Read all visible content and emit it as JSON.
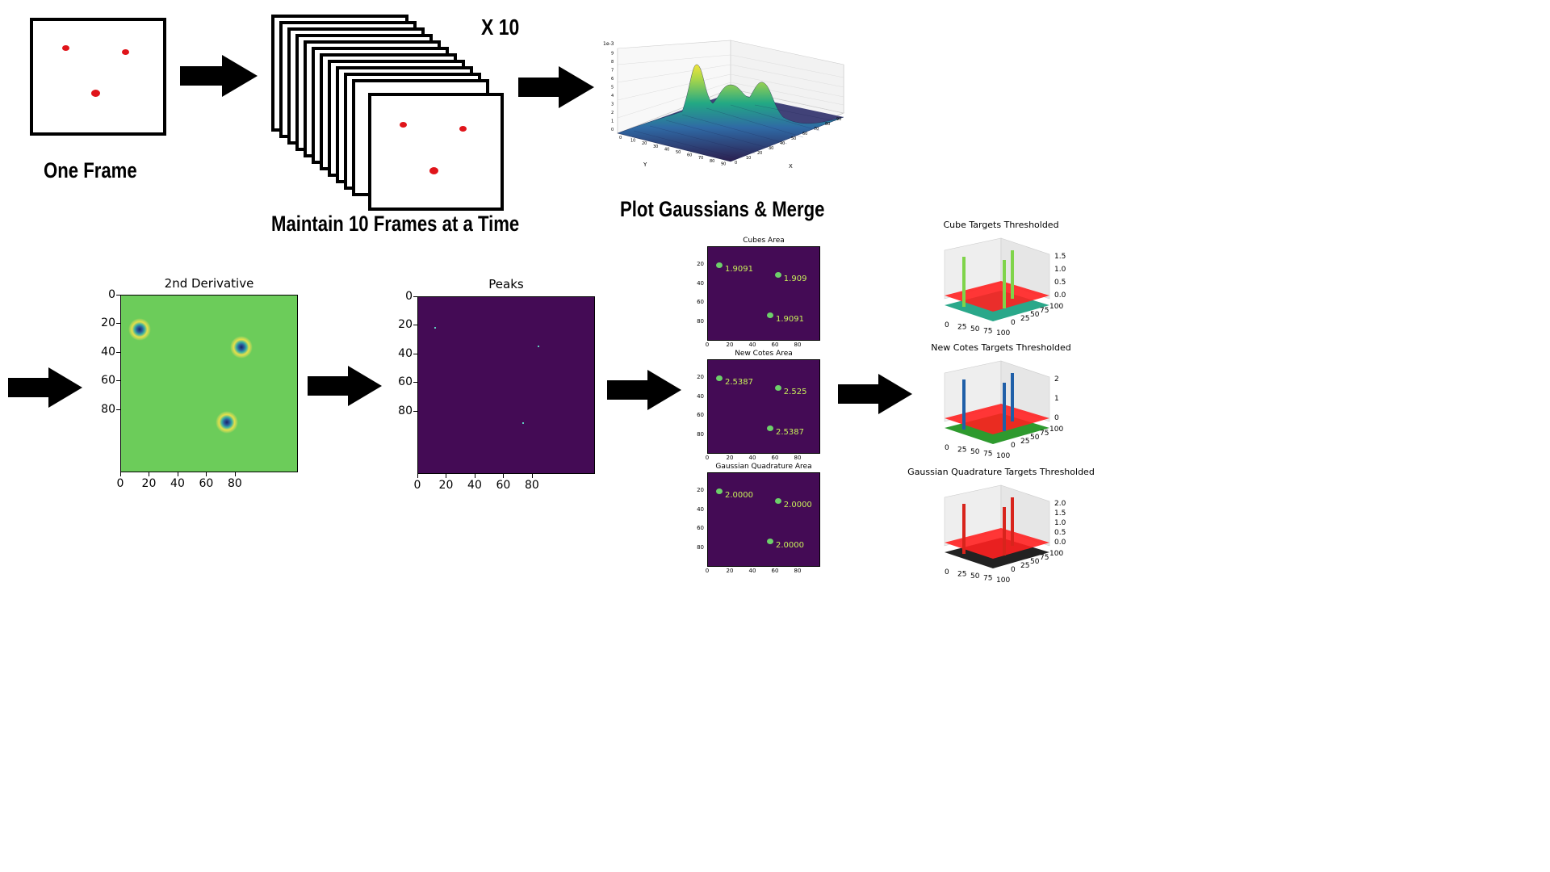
{
  "step1": {
    "caption": "One Frame"
  },
  "step2": {
    "caption": "Maintain 10 Frames at a Time",
    "multiplier": "X 10"
  },
  "step3": {
    "caption": "Plot Gaussians & Merge",
    "axis_x_letter": "X",
    "axis_y_letter": "Y",
    "x_ticks": [
      "0",
      "10",
      "20",
      "30",
      "40",
      "50",
      "60",
      "70",
      "80",
      "90"
    ],
    "y_ticks": [
      "0",
      "10",
      "20",
      "30",
      "40",
      "50",
      "60",
      "70",
      "80",
      "90"
    ],
    "z_ticks": [
      "0",
      "1",
      "2",
      "3",
      "4",
      "5",
      "6",
      "7",
      "8",
      "9"
    ],
    "z_scale_label": "1e-3"
  },
  "plot_2nd_derivative": {
    "title": "2nd Derivative",
    "x_ticks": [
      "0",
      "20",
      "40",
      "60",
      "80"
    ],
    "y_ticks": [
      "0",
      "20",
      "40",
      "60",
      "80"
    ],
    "background_color": "#6ccc5a"
  },
  "plot_peaks": {
    "title": "Peaks",
    "x_ticks": [
      "0",
      "20",
      "40",
      "60",
      "80"
    ],
    "y_ticks": [
      "0",
      "20",
      "40",
      "60",
      "80"
    ],
    "background_color": "#440b55"
  },
  "area_plots": [
    {
      "title": "Cubes Area",
      "labels": [
        "1.9091",
        "1.909",
        "1.9091"
      ]
    },
    {
      "title": "New Cotes Area",
      "labels": [
        "2.5387",
        "2.525",
        "2.5387"
      ]
    },
    {
      "title": "Gaussian Quadrature Area",
      "labels": [
        "2.0000",
        "2.0000",
        "2.0000"
      ]
    }
  ],
  "area_ticks": {
    "x": [
      "0",
      "20",
      "40",
      "60",
      "80"
    ],
    "y": [
      "0",
      "20",
      "40",
      "60",
      "80"
    ]
  },
  "threshold_plots": [
    {
      "title": "Cube Targets Thresholded",
      "z_ticks": [
        "1.5",
        "1.0",
        "0.5",
        "0.0"
      ],
      "bar_color": "#7fd44a",
      "base_color": "#2aa88a"
    },
    {
      "title": "New Cotes Targets Thresholded",
      "z_ticks": [
        "2",
        "1",
        "0"
      ],
      "bar_color": "#1f5fa8",
      "base_color": "#2e9a2e"
    },
    {
      "title": "Gaussian Quadrature Targets Thresholded",
      "z_ticks": [
        "2.0",
        "1.5",
        "1.0",
        "0.5",
        "0.0"
      ],
      "bar_color": "#d8241c",
      "base_color": "#222222"
    }
  ],
  "threshold_axis_ticks": {
    "x": [
      "0",
      "25",
      "50",
      "75",
      "100"
    ],
    "y": [
      "100",
      "75",
      "50",
      "25",
      "0"
    ]
  }
}
